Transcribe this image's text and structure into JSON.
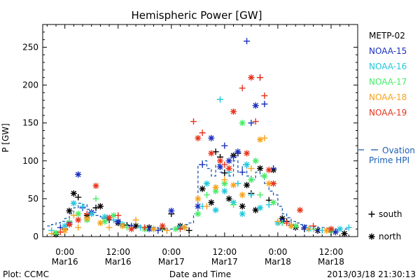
{
  "chart_data": {
    "type": "scatter",
    "title": "Hemispheric Power [GW]",
    "xlabel": "Date and Time",
    "ylabel": "P [GW]",
    "xlim_hours": [
      -5,
      66
    ],
    "ylim": [
      0,
      280
    ],
    "yticks": [
      0,
      50,
      100,
      150,
      200,
      250
    ],
    "x_ticks": [
      {
        "h": 0,
        "time": "0:00",
        "date": "Mar16"
      },
      {
        "h": 12,
        "time": "12:00",
        "date": "Mar16"
      },
      {
        "h": 24,
        "time": "0:00",
        "date": "Mar17"
      },
      {
        "h": 36,
        "time": "12:00",
        "date": "Mar17"
      },
      {
        "h": 48,
        "time": "0:00",
        "date": "Mar18"
      },
      {
        "h": 60,
        "time": "12:00",
        "date": "Mar18"
      }
    ],
    "grid": false,
    "legend_position": "right",
    "series": [
      {
        "name": "METP-02",
        "color": "#000000",
        "points": [
          [
            -2,
            3,
            "*"
          ],
          [
            0,
            10,
            "+"
          ],
          [
            1,
            34,
            "*"
          ],
          [
            2,
            57,
            "*"
          ],
          [
            3,
            52,
            "+"
          ],
          [
            5,
            28,
            "*"
          ],
          [
            7,
            38,
            "+"
          ],
          [
            8,
            40,
            "*"
          ],
          [
            10,
            22,
            "+"
          ],
          [
            12,
            18,
            "*"
          ],
          [
            14,
            15,
            "+"
          ],
          [
            16,
            14,
            "*"
          ],
          [
            19,
            12,
            "*"
          ],
          [
            22,
            10,
            "+"
          ],
          [
            24,
            30,
            "+"
          ],
          [
            26,
            14,
            "*"
          ],
          [
            28,
            8,
            "+"
          ],
          [
            31,
            63,
            "*"
          ],
          [
            33,
            45,
            "*"
          ],
          [
            34,
            112,
            "+"
          ],
          [
            35,
            105,
            "+"
          ],
          [
            36,
            84,
            "+"
          ],
          [
            37,
            50,
            "*"
          ],
          [
            38,
            107,
            "*"
          ],
          [
            39,
            110,
            "+"
          ],
          [
            40,
            40,
            "*"
          ],
          [
            41,
            68,
            "*"
          ],
          [
            42,
            57,
            "+"
          ],
          [
            43,
            35,
            "*"
          ],
          [
            44,
            90,
            "*"
          ],
          [
            46,
            48,
            "+"
          ],
          [
            47,
            88,
            "*"
          ],
          [
            49,
            24,
            "*"
          ],
          [
            50,
            20,
            "+"
          ],
          [
            52,
            12,
            "*"
          ],
          [
            54,
            10,
            "+"
          ],
          [
            57,
            8,
            "*"
          ],
          [
            60,
            6,
            "+"
          ],
          [
            63,
            4,
            "*"
          ]
        ]
      },
      {
        "name": "NOAA-15",
        "color": "#1c2fc0",
        "points": [
          [
            -1,
            12,
            "+"
          ],
          [
            1,
            18,
            "*"
          ],
          [
            3,
            82,
            "*"
          ],
          [
            4,
            38,
            "+"
          ],
          [
            6,
            32,
            "*"
          ],
          [
            9,
            24,
            "+"
          ],
          [
            12,
            20,
            "*"
          ],
          [
            15,
            14,
            "+"
          ],
          [
            19,
            10,
            "*"
          ],
          [
            21,
            8,
            "+"
          ],
          [
            24,
            34,
            "*"
          ],
          [
            27,
            12,
            "+"
          ],
          [
            30,
            40,
            "*"
          ],
          [
            31,
            95,
            "+"
          ],
          [
            33,
            130,
            "*"
          ],
          [
            35,
            92,
            "*"
          ],
          [
            36,
            120,
            "+"
          ],
          [
            37,
            100,
            "*"
          ],
          [
            38,
            105,
            "+"
          ],
          [
            39,
            112,
            "*"
          ],
          [
            40,
            85,
            "+"
          ],
          [
            41,
            258,
            "+"
          ],
          [
            42,
            150,
            "+"
          ],
          [
            43,
            173,
            "*"
          ],
          [
            44,
            210,
            "+"
          ],
          [
            45,
            175,
            "+"
          ],
          [
            47,
            90,
            "+"
          ],
          [
            49,
            20,
            "*"
          ],
          [
            51,
            15,
            "+"
          ],
          [
            54,
            12,
            "*"
          ],
          [
            57,
            8,
            "+"
          ],
          [
            61,
            6,
            "*"
          ]
        ]
      },
      {
        "name": "NOAA-16",
        "color": "#22c8dc",
        "points": [
          [
            -3,
            8,
            "+"
          ],
          [
            0,
            14,
            "*"
          ],
          [
            2,
            44,
            "*"
          ],
          [
            4,
            40,
            "+"
          ],
          [
            6,
            30,
            "*"
          ],
          [
            9,
            26,
            "*"
          ],
          [
            11,
            22,
            "+"
          ],
          [
            13,
            16,
            "*"
          ],
          [
            17,
            12,
            "+"
          ],
          [
            20,
            10,
            "*"
          ],
          [
            23,
            8,
            "+"
          ],
          [
            26,
            12,
            "*"
          ],
          [
            31,
            40,
            "+"
          ],
          [
            32,
            70,
            "*"
          ],
          [
            34,
            35,
            "*"
          ],
          [
            35,
            181,
            "+"
          ],
          [
            36,
            60,
            "*"
          ],
          [
            37,
            85,
            "+"
          ],
          [
            38,
            45,
            "*"
          ],
          [
            39,
            70,
            "+"
          ],
          [
            40,
            30,
            "*"
          ],
          [
            41,
            95,
            "*"
          ],
          [
            42,
            55,
            "+"
          ],
          [
            44,
            38,
            "*"
          ],
          [
            46,
            42,
            "+"
          ],
          [
            48,
            18,
            "*"
          ],
          [
            51,
            14,
            "+"
          ],
          [
            55,
            10,
            "*"
          ],
          [
            58,
            8,
            "+"
          ],
          [
            62,
            10,
            "*"
          ],
          [
            64,
            12,
            "+"
          ]
        ]
      },
      {
        "name": "NOAA-17",
        "color": "#44ee66",
        "points": [
          [
            -2,
            5,
            "*"
          ],
          [
            1,
            20,
            "+"
          ],
          [
            3,
            30,
            "*"
          ],
          [
            5,
            22,
            "*"
          ],
          [
            7,
            50,
            "+"
          ],
          [
            9,
            20,
            "*"
          ],
          [
            11,
            28,
            "*"
          ],
          [
            14,
            12,
            "+"
          ],
          [
            18,
            10,
            "*"
          ],
          [
            22,
            12,
            "+"
          ],
          [
            25,
            10,
            "*"
          ],
          [
            30,
            30,
            "*"
          ],
          [
            32,
            55,
            "+"
          ],
          [
            34,
            60,
            "*"
          ],
          [
            36,
            70,
            "*"
          ],
          [
            38,
            42,
            "+"
          ],
          [
            40,
            150,
            "*"
          ],
          [
            42,
            75,
            "*"
          ],
          [
            43,
            100,
            "*"
          ],
          [
            44,
            55,
            "+"
          ],
          [
            45,
            80,
            "*"
          ],
          [
            47,
            45,
            "*"
          ],
          [
            49,
            18,
            "+"
          ],
          [
            52,
            14,
            "*"
          ],
          [
            56,
            10,
            "+"
          ],
          [
            60,
            8,
            "*"
          ]
        ]
      },
      {
        "name": "NOAA-18",
        "color": "#f7a21c",
        "points": [
          [
            -3,
            4,
            "+"
          ],
          [
            0,
            8,
            "*"
          ],
          [
            2,
            28,
            "+"
          ],
          [
            3,
            12,
            "+"
          ],
          [
            5,
            24,
            "*"
          ],
          [
            8,
            18,
            "*"
          ],
          [
            10,
            12,
            "+"
          ],
          [
            13,
            14,
            "*"
          ],
          [
            16,
            22,
            "+"
          ],
          [
            20,
            10,
            "*"
          ],
          [
            23,
            8,
            "+"
          ],
          [
            27,
            12,
            "*"
          ],
          [
            30,
            50,
            "*"
          ],
          [
            32,
            40,
            "+"
          ],
          [
            34,
            65,
            "*"
          ],
          [
            36,
            75,
            "+"
          ],
          [
            38,
            68,
            "*"
          ],
          [
            40,
            55,
            "*"
          ],
          [
            42,
            90,
            "+"
          ],
          [
            44,
            128,
            "*"
          ],
          [
            45,
            130,
            "+"
          ],
          [
            46,
            70,
            "*"
          ],
          [
            48,
            20,
            "+"
          ],
          [
            51,
            14,
            "*"
          ],
          [
            55,
            10,
            "+"
          ],
          [
            59,
            8,
            "*"
          ]
        ]
      },
      {
        "name": "NOAA-19",
        "color": "#e8341c",
        "points": [
          [
            -1,
            6,
            "+"
          ],
          [
            1,
            16,
            "*"
          ],
          [
            3,
            22,
            "*"
          ],
          [
            5,
            30,
            "+"
          ],
          [
            7,
            67,
            "*"
          ],
          [
            10,
            25,
            "*"
          ],
          [
            12,
            28,
            "+"
          ],
          [
            15,
            10,
            "*"
          ],
          [
            18,
            12,
            "+"
          ],
          [
            22,
            14,
            "*"
          ],
          [
            26,
            10,
            "+"
          ],
          [
            29,
            152,
            "+"
          ],
          [
            30,
            130,
            "*"
          ],
          [
            31,
            137,
            "+"
          ],
          [
            33,
            110,
            "*"
          ],
          [
            35,
            100,
            "*"
          ],
          [
            36,
            95,
            "+"
          ],
          [
            37,
            90,
            "*"
          ],
          [
            38,
            165,
            "*"
          ],
          [
            40,
            196,
            "+"
          ],
          [
            41,
            110,
            "*"
          ],
          [
            42,
            210,
            "*"
          ],
          [
            43,
            152,
            "+"
          ],
          [
            44,
            210,
            "+"
          ],
          [
            45,
            186,
            "+"
          ],
          [
            46,
            88,
            "*"
          ],
          [
            47,
            70,
            "*"
          ],
          [
            50,
            18,
            "+"
          ],
          [
            53,
            35,
            "*"
          ],
          [
            56,
            14,
            "+"
          ],
          [
            60,
            10,
            "*"
          ]
        ]
      }
    ],
    "ovation": {
      "name": "Ovation Prime HPI",
      "legend_lines": [
        "Ovation",
        "Prime HPI"
      ],
      "color": "#1a5fb4",
      "points": [
        [
          -4,
          14
        ],
        [
          -3,
          16
        ],
        [
          -2,
          18
        ],
        [
          -1,
          20
        ],
        [
          0,
          24
        ],
        [
          1,
          30
        ],
        [
          2,
          38
        ],
        [
          3,
          44
        ],
        [
          4,
          42
        ],
        [
          5,
          36
        ],
        [
          6,
          32
        ],
        [
          7,
          28
        ],
        [
          8,
          26
        ],
        [
          9,
          24
        ],
        [
          10,
          22
        ],
        [
          11,
          20
        ],
        [
          12,
          18
        ],
        [
          13,
          17
        ],
        [
          14,
          16
        ],
        [
          15,
          15
        ],
        [
          16,
          14
        ],
        [
          17,
          14
        ],
        [
          18,
          13
        ],
        [
          19,
          12
        ],
        [
          20,
          12
        ],
        [
          21,
          11
        ],
        [
          22,
          11
        ],
        [
          23,
          10
        ],
        [
          24,
          10
        ],
        [
          25,
          12
        ],
        [
          26,
          14
        ],
        [
          27,
          16
        ],
        [
          28,
          18
        ],
        [
          29,
          30
        ],
        [
          30,
          95
        ],
        [
          31,
          100
        ],
        [
          32,
          90
        ],
        [
          33,
          80
        ],
        [
          34,
          95
        ],
        [
          35,
          85
        ],
        [
          36,
          90
        ],
        [
          37,
          80
        ],
        [
          38,
          100
        ],
        [
          39,
          85
        ],
        [
          40,
          95
        ],
        [
          41,
          80
        ],
        [
          42,
          75
        ],
        [
          43,
          85
        ],
        [
          44,
          80
        ],
        [
          45,
          70
        ],
        [
          46,
          60
        ],
        [
          47,
          55
        ],
        [
          48,
          40
        ],
        [
          49,
          30
        ],
        [
          50,
          25
        ],
        [
          51,
          20
        ],
        [
          52,
          18
        ],
        [
          53,
          16
        ],
        [
          54,
          15
        ],
        [
          55,
          14
        ],
        [
          56,
          13
        ],
        [
          57,
          12
        ],
        [
          58,
          12
        ],
        [
          59,
          11
        ],
        [
          60,
          11
        ],
        [
          61,
          10
        ],
        [
          62,
          10
        ],
        [
          63,
          10
        ],
        [
          64,
          12
        ],
        [
          65,
          12
        ]
      ]
    },
    "marker_legend": [
      {
        "symbol": "+",
        "label": "south"
      },
      {
        "symbol": "*",
        "label": "north"
      }
    ]
  },
  "footer": {
    "left": "Plot: CCMC",
    "center": "Date and Time",
    "right": "2013/03/18 21:30:13"
  }
}
